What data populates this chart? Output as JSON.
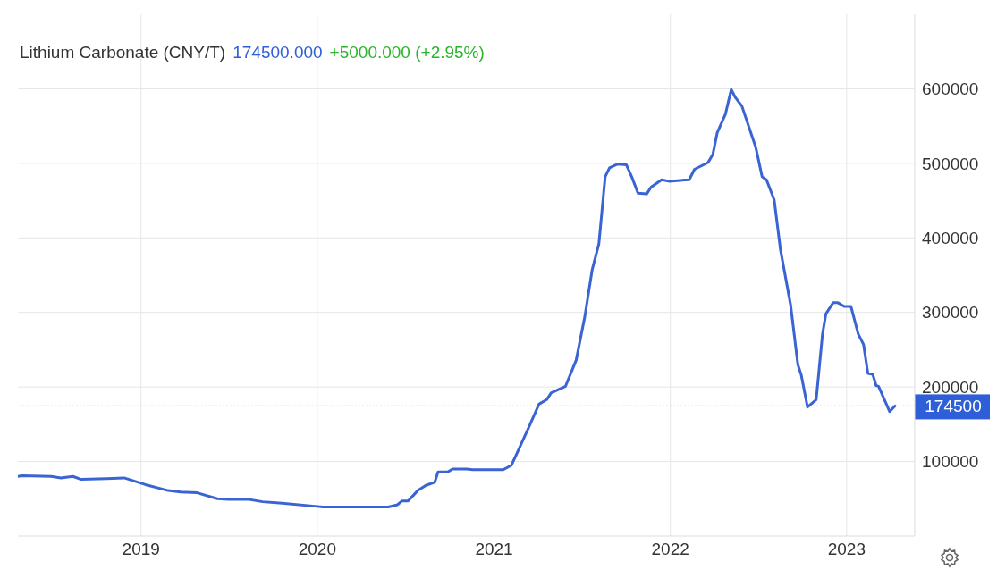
{
  "chart_data": {
    "type": "line",
    "title": "Lithium Carbonate (CNY/T)",
    "annotations": [
      "174500.000",
      "+5000.000 (+2.95%)"
    ],
    "x": [
      "2018-04-21",
      "2018-04-30",
      "2018-06-29",
      "2018-07-19",
      "2018-08-13",
      "2018-08-30",
      "2018-10-21",
      "2018-11-27",
      "2019-01-10",
      "2019-02-26",
      "2019-03-24",
      "2019-04-27",
      "2019-06-08",
      "2019-07-04",
      "2019-08-13",
      "2019-09-10",
      "2019-10-20",
      "2019-12-27",
      "2020-01-13",
      "2020-05-27",
      "2020-06-15",
      "2020-06-24",
      "2020-07-07",
      "2020-07-27",
      "2020-08-13",
      "2020-08-31",
      "2020-09-07",
      "2020-09-27",
      "2020-10-07",
      "2020-11-05",
      "2020-11-18",
      "2021-01-20",
      "2021-02-06",
      "2021-03-14",
      "2021-04-04",
      "2021-04-20",
      "2021-04-29",
      "2021-05-29",
      "2021-06-20",
      "2021-07-08",
      "2021-07-23",
      "2021-08-06",
      "2021-08-19",
      "2021-08-28",
      "2021-09-14",
      "2021-10-02",
      "2021-10-13",
      "2021-10-26",
      "2021-11-13",
      "2021-11-22",
      "2021-12-14",
      "2021-12-29",
      "2022-02-09",
      "2022-02-20",
      "2022-03-20",
      "2022-03-30",
      "2022-04-08",
      "2022-04-25",
      "2022-05-07",
      "2022-05-16",
      "2022-05-29",
      "2022-06-27",
      "2022-07-10",
      "2022-07-19",
      "2022-08-04",
      "2022-08-17",
      "2022-09-07",
      "2022-09-22",
      "2022-09-29",
      "2022-10-12",
      "2022-10-30",
      "2022-11-12",
      "2022-11-19",
      "2022-12-04",
      "2022-12-14",
      "2022-12-27",
      "2023-01-10",
      "2023-01-25",
      "2023-02-05",
      "2023-02-14",
      "2023-02-24",
      "2023-03-03",
      "2023-03-08",
      "2023-03-31",
      "2023-04-11"
    ],
    "series": [
      {
        "color": "#3a64d3",
        "values": [
          80000,
          81000,
          80000,
          78000,
          80000,
          76000,
          77000,
          78000,
          69000,
          61000,
          59000,
          58000,
          50000,
          49000,
          49000,
          46000,
          44000,
          40000,
          39000,
          39000,
          42000,
          47000,
          47000,
          61000,
          68000,
          72000,
          86000,
          86000,
          90000,
          90000,
          89000,
          89000,
          95000,
          146000,
          177000,
          183000,
          192000,
          201000,
          236000,
          295000,
          357000,
          392000,
          482000,
          494000,
          499000,
          498000,
          482000,
          460000,
          459000,
          468000,
          478000,
          476000,
          478000,
          492000,
          501000,
          512000,
          541000,
          566000,
          599000,
          588000,
          577000,
          521000,
          482000,
          478000,
          451000,
          384000,
          310000,
          230000,
          216000,
          173000,
          183000,
          271000,
          298000,
          313000,
          313000,
          308000,
          308000,
          271000,
          257000,
          218000,
          217000,
          202000,
          201000,
          167000,
          174500
        ]
      }
    ],
    "xlim": [
      "2018-04-21",
      "2023-05-22"
    ],
    "xticks": [
      "2019",
      "2020",
      "2021",
      "2022",
      "2023"
    ],
    "ylim": [
      0,
      700000
    ],
    "yticks": [
      100000,
      200000,
      300000,
      400000,
      500000,
      600000
    ],
    "ref_lines": [
      {
        "axis": "y",
        "value": 174500,
        "label": "174500",
        "color": "#2f5fd8",
        "line_style": "dotted"
      }
    ],
    "grid": true,
    "marker": "none",
    "line_style": "solid"
  }
}
